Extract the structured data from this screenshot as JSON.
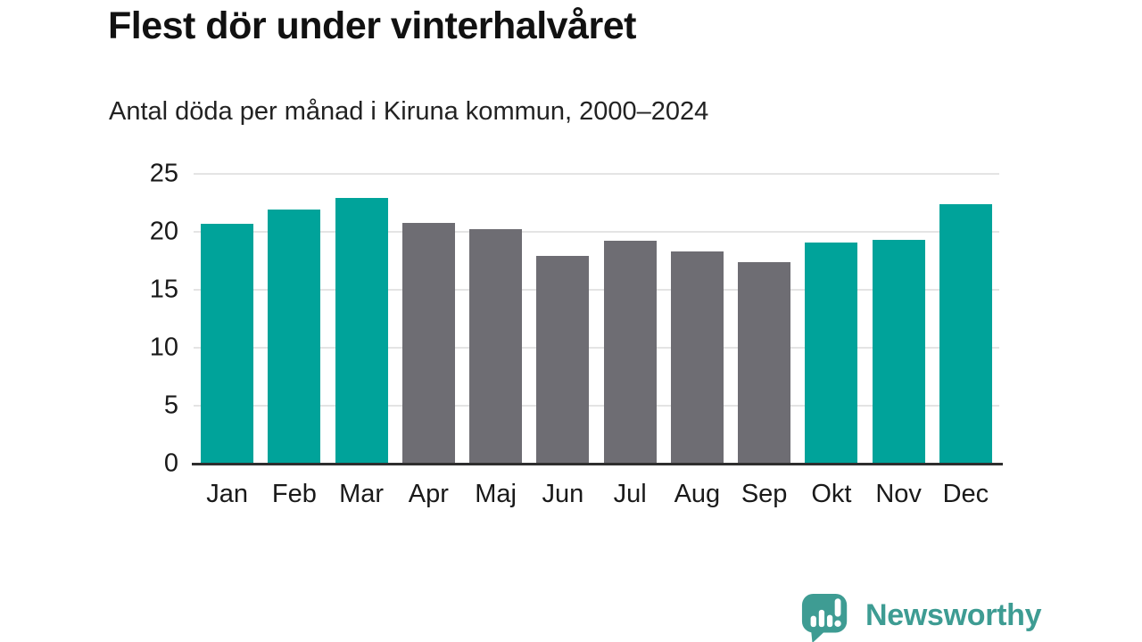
{
  "title": "Flest dör under vinterhalvåret",
  "subtitle": "Antal döda per månad i Kiruna kommun, 2000–2024",
  "chart_data": {
    "type": "bar",
    "title": "Flest dör under vinterhalvåret",
    "subtitle": "Antal döda per månad i Kiruna kommun, 2000–2024",
    "categories": [
      "Jan",
      "Feb",
      "Mar",
      "Apr",
      "Maj",
      "Jun",
      "Jul",
      "Aug",
      "Sep",
      "Okt",
      "Nov",
      "Dec"
    ],
    "values": [
      20.7,
      21.9,
      22.9,
      20.8,
      20.2,
      17.9,
      19.2,
      18.3,
      17.4,
      19.1,
      19.3,
      22.4
    ],
    "bar_color_keys": [
      "winter",
      "winter",
      "winter",
      "summer",
      "summer",
      "summer",
      "summer",
      "summer",
      "summer",
      "winter",
      "winter",
      "winter"
    ],
    "palette": {
      "winter": "#00a39a",
      "summer": "#6e6d73"
    },
    "xlabel": "",
    "ylabel": "",
    "ylim": [
      0,
      25
    ],
    "yticks": [
      0,
      5,
      10,
      15,
      20,
      25
    ],
    "grid": true,
    "legend": "none",
    "colors": {
      "grid": "#e4e4e4",
      "axis": "#2e2e2e",
      "text": "#1a1a1a"
    }
  },
  "footer": {
    "brand": "Newsworthy",
    "brand_color": "#3e9c93",
    "logo_icon": "speech-bubble-bar-chart-exclamation-icon"
  }
}
